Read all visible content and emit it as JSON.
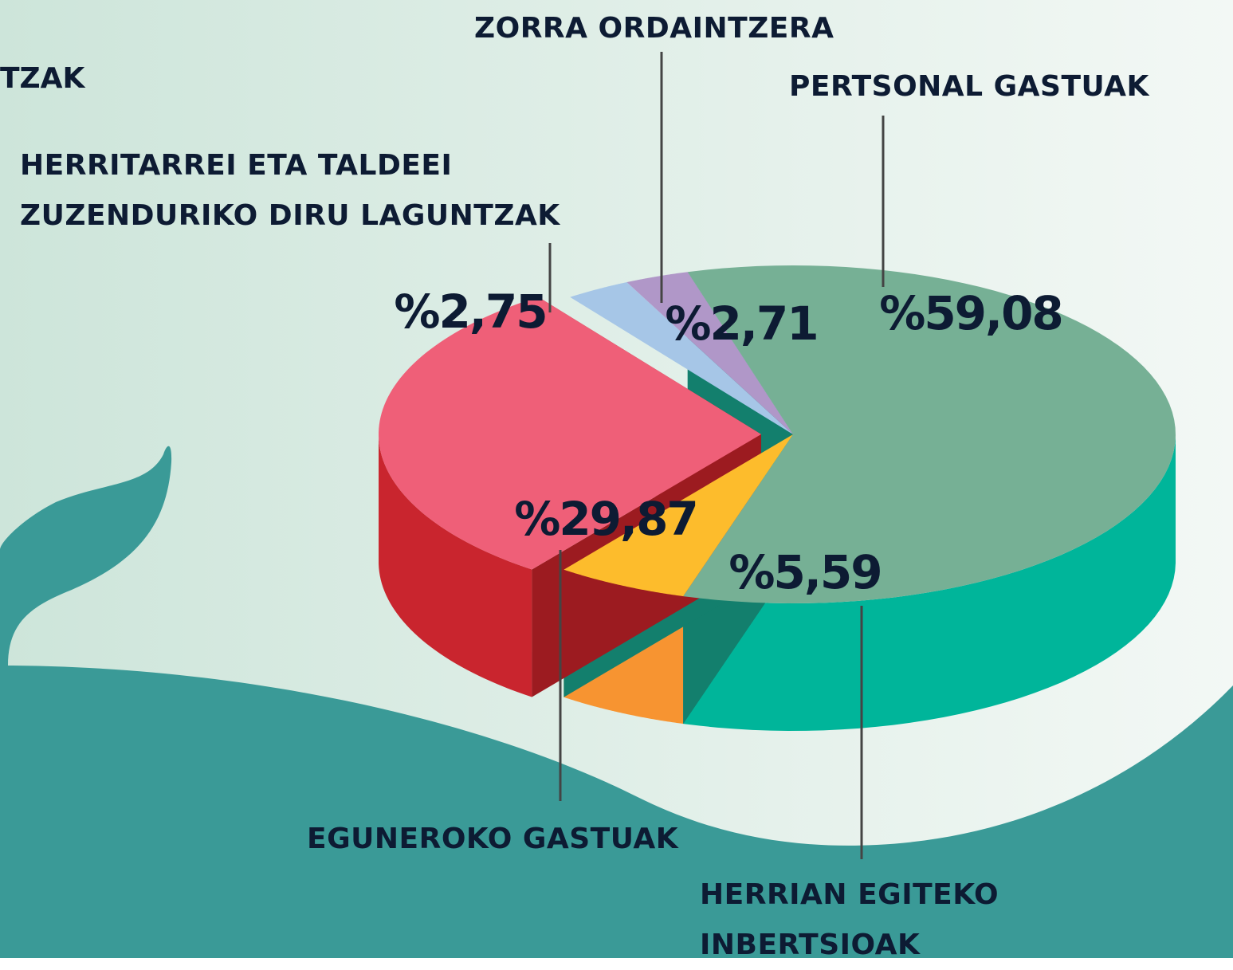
{
  "partial_heading": "TZAK",
  "chart_data": {
    "type": "pie",
    "categories": [
      "PERTSONAL GASTUAK",
      "HERRIAN EGITEKO INBERTSIOAK",
      "EGUNEROKO GASTUAK",
      "HERRITARREI ETA TALDEEI ZUZENDURIKO DIRU LAGUNTZAK",
      "ZORRA ORDAINTZERA"
    ],
    "values": [
      59.08,
      5.59,
      29.87,
      2.75,
      2.71
    ],
    "value_labels": [
      "%59,08",
      "%5,59",
      "%29,87",
      "%2,75",
      "%2,71"
    ],
    "colors": [
      "#76b095",
      "#fdbc2c",
      "#ef5f78",
      "#a6c6e7",
      "#b097c8"
    ],
    "side_colors": [
      "#00b59a",
      "#f79431",
      "#c9252e",
      "#86a6c7",
      "#9077a8"
    ]
  }
}
